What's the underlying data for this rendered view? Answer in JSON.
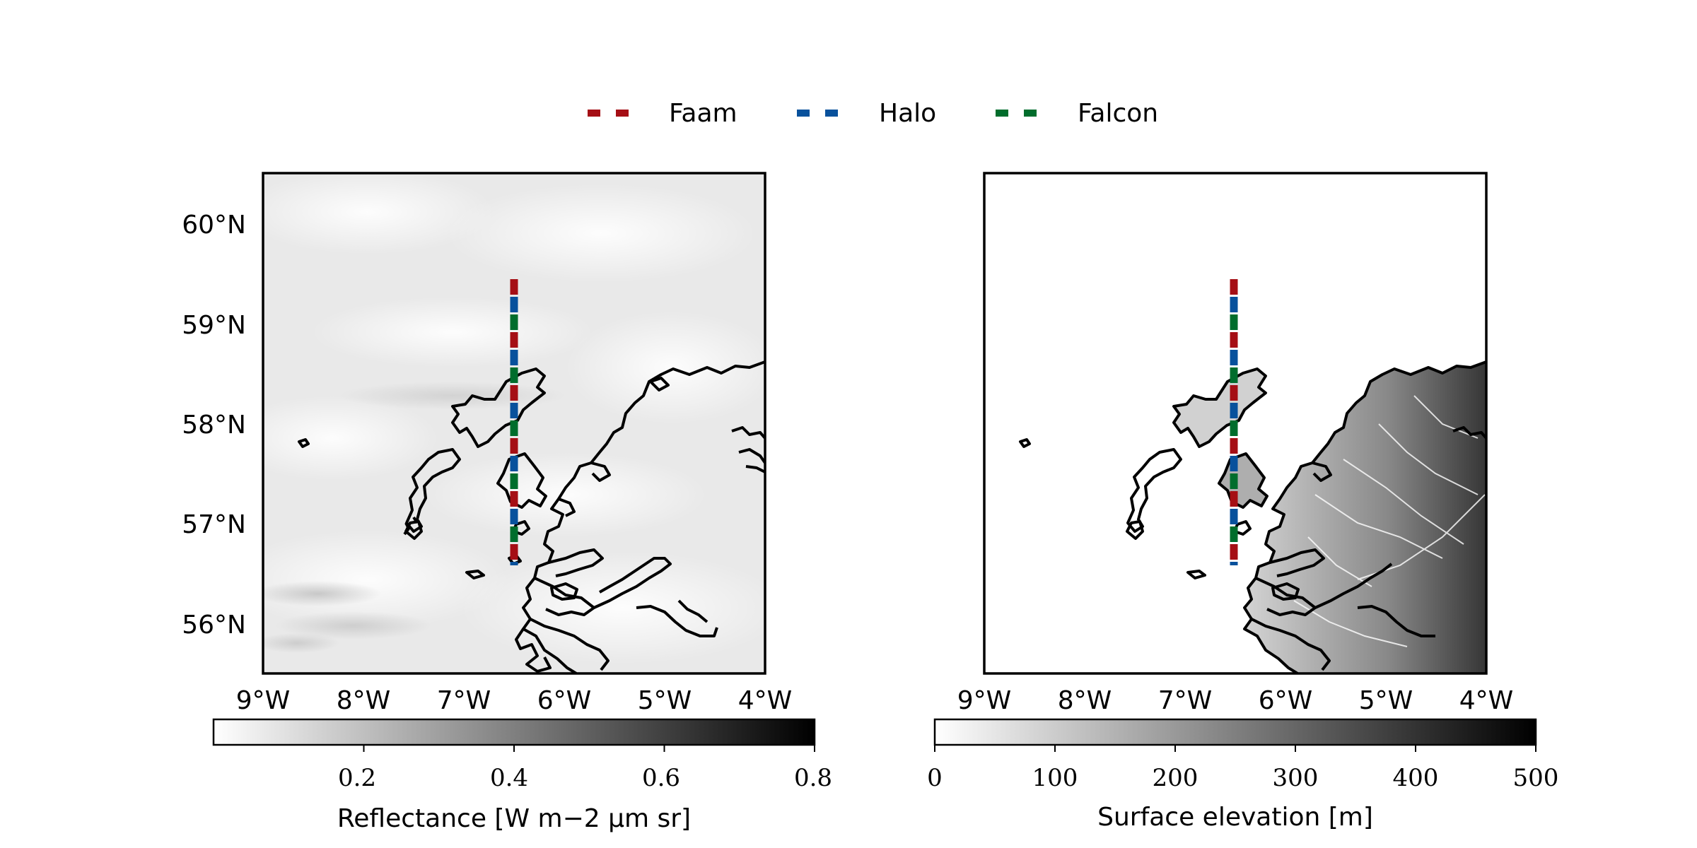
{
  "legend": {
    "items": [
      {
        "label": "Faam",
        "color": "#a50f15"
      },
      {
        "label": "Halo",
        "color": "#08519c"
      },
      {
        "label": "Falcon",
        "color": "#006d2c"
      }
    ]
  },
  "map_extent": {
    "lon": [
      -9,
      -4
    ],
    "lat": [
      55.5,
      60.5
    ]
  },
  "lat_ticks": [
    "60°N",
    "59°N",
    "58°N",
    "57°N",
    "56°N"
  ],
  "lon_ticks": [
    "9°W",
    "8°W",
    "7°W",
    "6°W",
    "5°W",
    "4°W"
  ],
  "flight_track": {
    "lon": -6.5,
    "lat_start": 56.6,
    "lat_end": 59.5
  },
  "panels": {
    "left": {
      "field": "Reflectance",
      "colorbar": {
        "label": "Reflectance [W m−2 μm sr]",
        "ticks": [
          "0.2",
          "0.4",
          "0.6",
          "0.8"
        ],
        "range": [
          0.0,
          0.8
        ],
        "cmap": [
          "#ffffff",
          "#000000"
        ]
      }
    },
    "right": {
      "field": "Surface elevation",
      "colorbar": {
        "label": "Surface elevation [m]",
        "ticks": [
          "0",
          "100",
          "200",
          "300",
          "400",
          "500"
        ],
        "range": [
          0,
          500
        ],
        "cmap": [
          "#ffffff",
          "#000000"
        ]
      }
    }
  }
}
